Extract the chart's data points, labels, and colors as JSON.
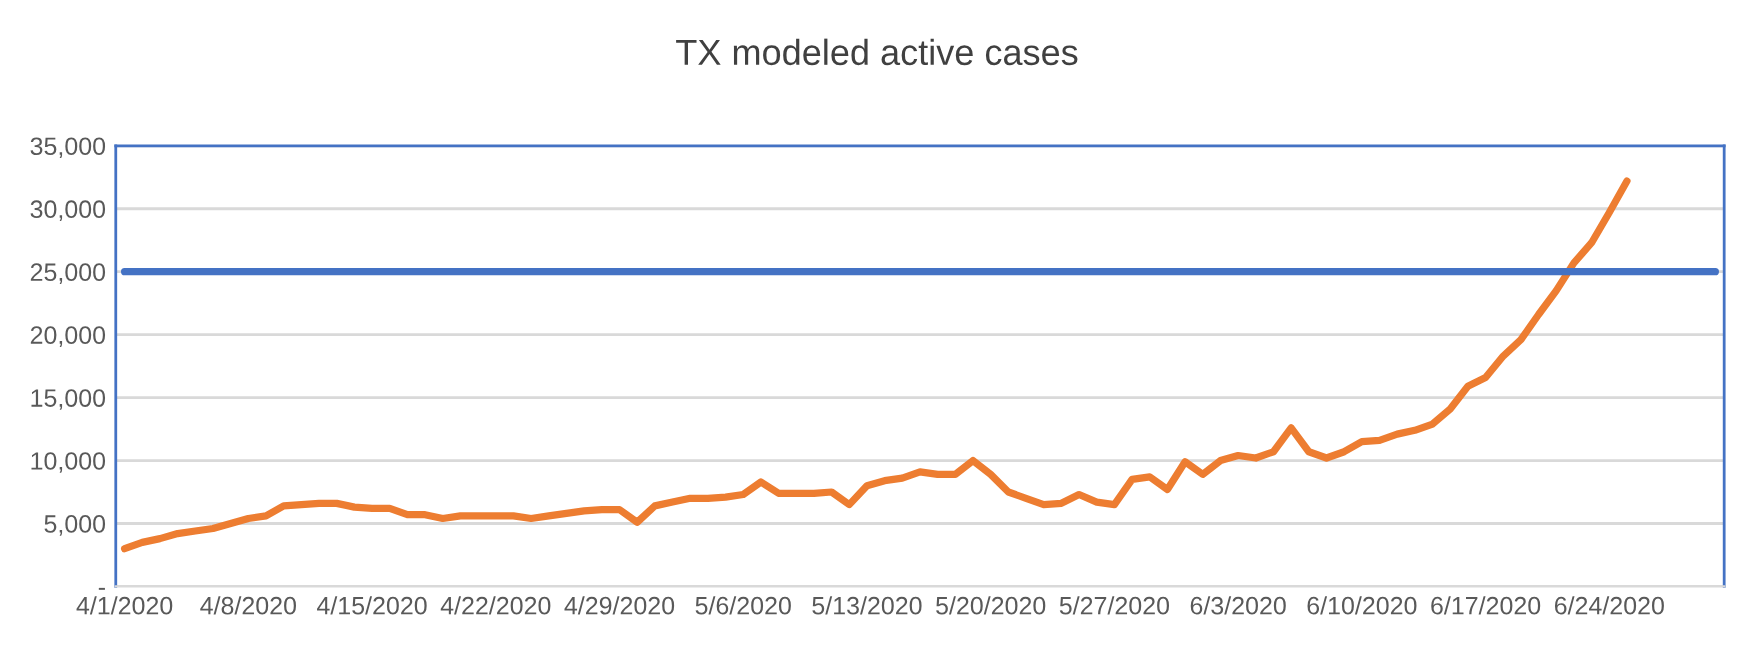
{
  "chart_data": {
    "type": "line",
    "title": "TX modeled active cases",
    "x": [
      "2020-04-01",
      "2020-04-02",
      "2020-04-03",
      "2020-04-04",
      "2020-04-05",
      "2020-04-06",
      "2020-04-07",
      "2020-04-08",
      "2020-04-09",
      "2020-04-10",
      "2020-04-11",
      "2020-04-12",
      "2020-04-13",
      "2020-04-14",
      "2020-04-15",
      "2020-04-16",
      "2020-04-17",
      "2020-04-18",
      "2020-04-19",
      "2020-04-20",
      "2020-04-21",
      "2020-04-22",
      "2020-04-23",
      "2020-04-24",
      "2020-04-25",
      "2020-04-26",
      "2020-04-27",
      "2020-04-28",
      "2020-04-29",
      "2020-04-30",
      "2020-05-01",
      "2020-05-02",
      "2020-05-03",
      "2020-05-04",
      "2020-05-05",
      "2020-05-06",
      "2020-05-07",
      "2020-05-08",
      "2020-05-09",
      "2020-05-10",
      "2020-05-11",
      "2020-05-12",
      "2020-05-13",
      "2020-05-14",
      "2020-05-15",
      "2020-05-16",
      "2020-05-17",
      "2020-05-18",
      "2020-05-19",
      "2020-05-20",
      "2020-05-21",
      "2020-05-22",
      "2020-05-23",
      "2020-05-24",
      "2020-05-25",
      "2020-05-26",
      "2020-05-27",
      "2020-05-28",
      "2020-05-29",
      "2020-05-30",
      "2020-05-31",
      "2020-06-01",
      "2020-06-02",
      "2020-06-03",
      "2020-06-04",
      "2020-06-05",
      "2020-06-06",
      "2020-06-07",
      "2020-06-08",
      "2020-06-09",
      "2020-06-10",
      "2020-06-11",
      "2020-06-12",
      "2020-06-13",
      "2020-06-14",
      "2020-06-15",
      "2020-06-16",
      "2020-06-17",
      "2020-06-18",
      "2020-06-19",
      "2020-06-20",
      "2020-06-21",
      "2020-06-22",
      "2020-06-23",
      "2020-06-24",
      "2020-06-25"
    ],
    "series": [
      {
        "color": "#ed7d31",
        "values": [
          3000,
          3500,
          3800,
          4200,
          4400,
          4600,
          5000,
          5400,
          5600,
          6400,
          6500,
          6600,
          6600,
          6300,
          6200,
          6200,
          5700,
          5700,
          5400,
          5600,
          5600,
          5600,
          5600,
          5400,
          5600,
          5800,
          6000,
          6100,
          6100,
          5100,
          6400,
          6700,
          7000,
          7000,
          7100,
          7300,
          8300,
          7400,
          7400,
          7400,
          7500,
          6500,
          8000,
          8400,
          8600,
          9100,
          8900,
          8900,
          10000,
          8900,
          7500,
          7000,
          6500,
          6600,
          7300,
          6700,
          6500,
          8500,
          8700,
          7700,
          9900,
          8900,
          10000,
          10400,
          10200,
          10700,
          12600,
          10700,
          10200,
          10700,
          11500,
          11600,
          12100,
          12400,
          12900,
          14100,
          15900,
          16600,
          18300,
          19600,
          21600,
          23500,
          25700,
          27300,
          29700,
          32200
        ]
      },
      {
        "color": "#4472c4",
        "x": [
          "2020-04-01",
          "2020-06-30"
        ],
        "values": [
          25000,
          25000
        ]
      }
    ],
    "xlim": [
      "2020-03-31T12:00",
      "2020-06-30T12:00"
    ],
    "xticks": [
      {
        "value": "2020-04-01",
        "label": "4/1/2020"
      },
      {
        "value": "2020-04-08",
        "label": "4/8/2020"
      },
      {
        "value": "2020-04-15",
        "label": "4/15/2020"
      },
      {
        "value": "2020-04-22",
        "label": "4/22/2020"
      },
      {
        "value": "2020-04-29",
        "label": "4/29/2020"
      },
      {
        "value": "2020-05-06",
        "label": "5/6/2020"
      },
      {
        "value": "2020-05-13",
        "label": "5/13/2020"
      },
      {
        "value": "2020-05-20",
        "label": "5/20/2020"
      },
      {
        "value": "2020-05-27",
        "label": "5/27/2020"
      },
      {
        "value": "2020-06-03",
        "label": "6/3/2020"
      },
      {
        "value": "2020-06-10",
        "label": "6/10/2020"
      },
      {
        "value": "2020-06-17",
        "label": "6/17/2020"
      },
      {
        "value": "2020-06-24",
        "label": "6/24/2020"
      }
    ],
    "ylim": [
      0,
      35000
    ],
    "yticks": [
      {
        "value": 0,
        "label": "-"
      },
      {
        "value": 5000,
        "label": "5,000"
      },
      {
        "value": 10000,
        "label": "10,000"
      },
      {
        "value": 15000,
        "label": "15,000"
      },
      {
        "value": 20000,
        "label": "20,000"
      },
      {
        "value": 25000,
        "label": "25,000"
      },
      {
        "value": 30000,
        "label": "30,000"
      },
      {
        "value": 35000,
        "label": "35,000"
      }
    ],
    "grid": "y",
    "marker": "none",
    "line_style": "solid"
  }
}
